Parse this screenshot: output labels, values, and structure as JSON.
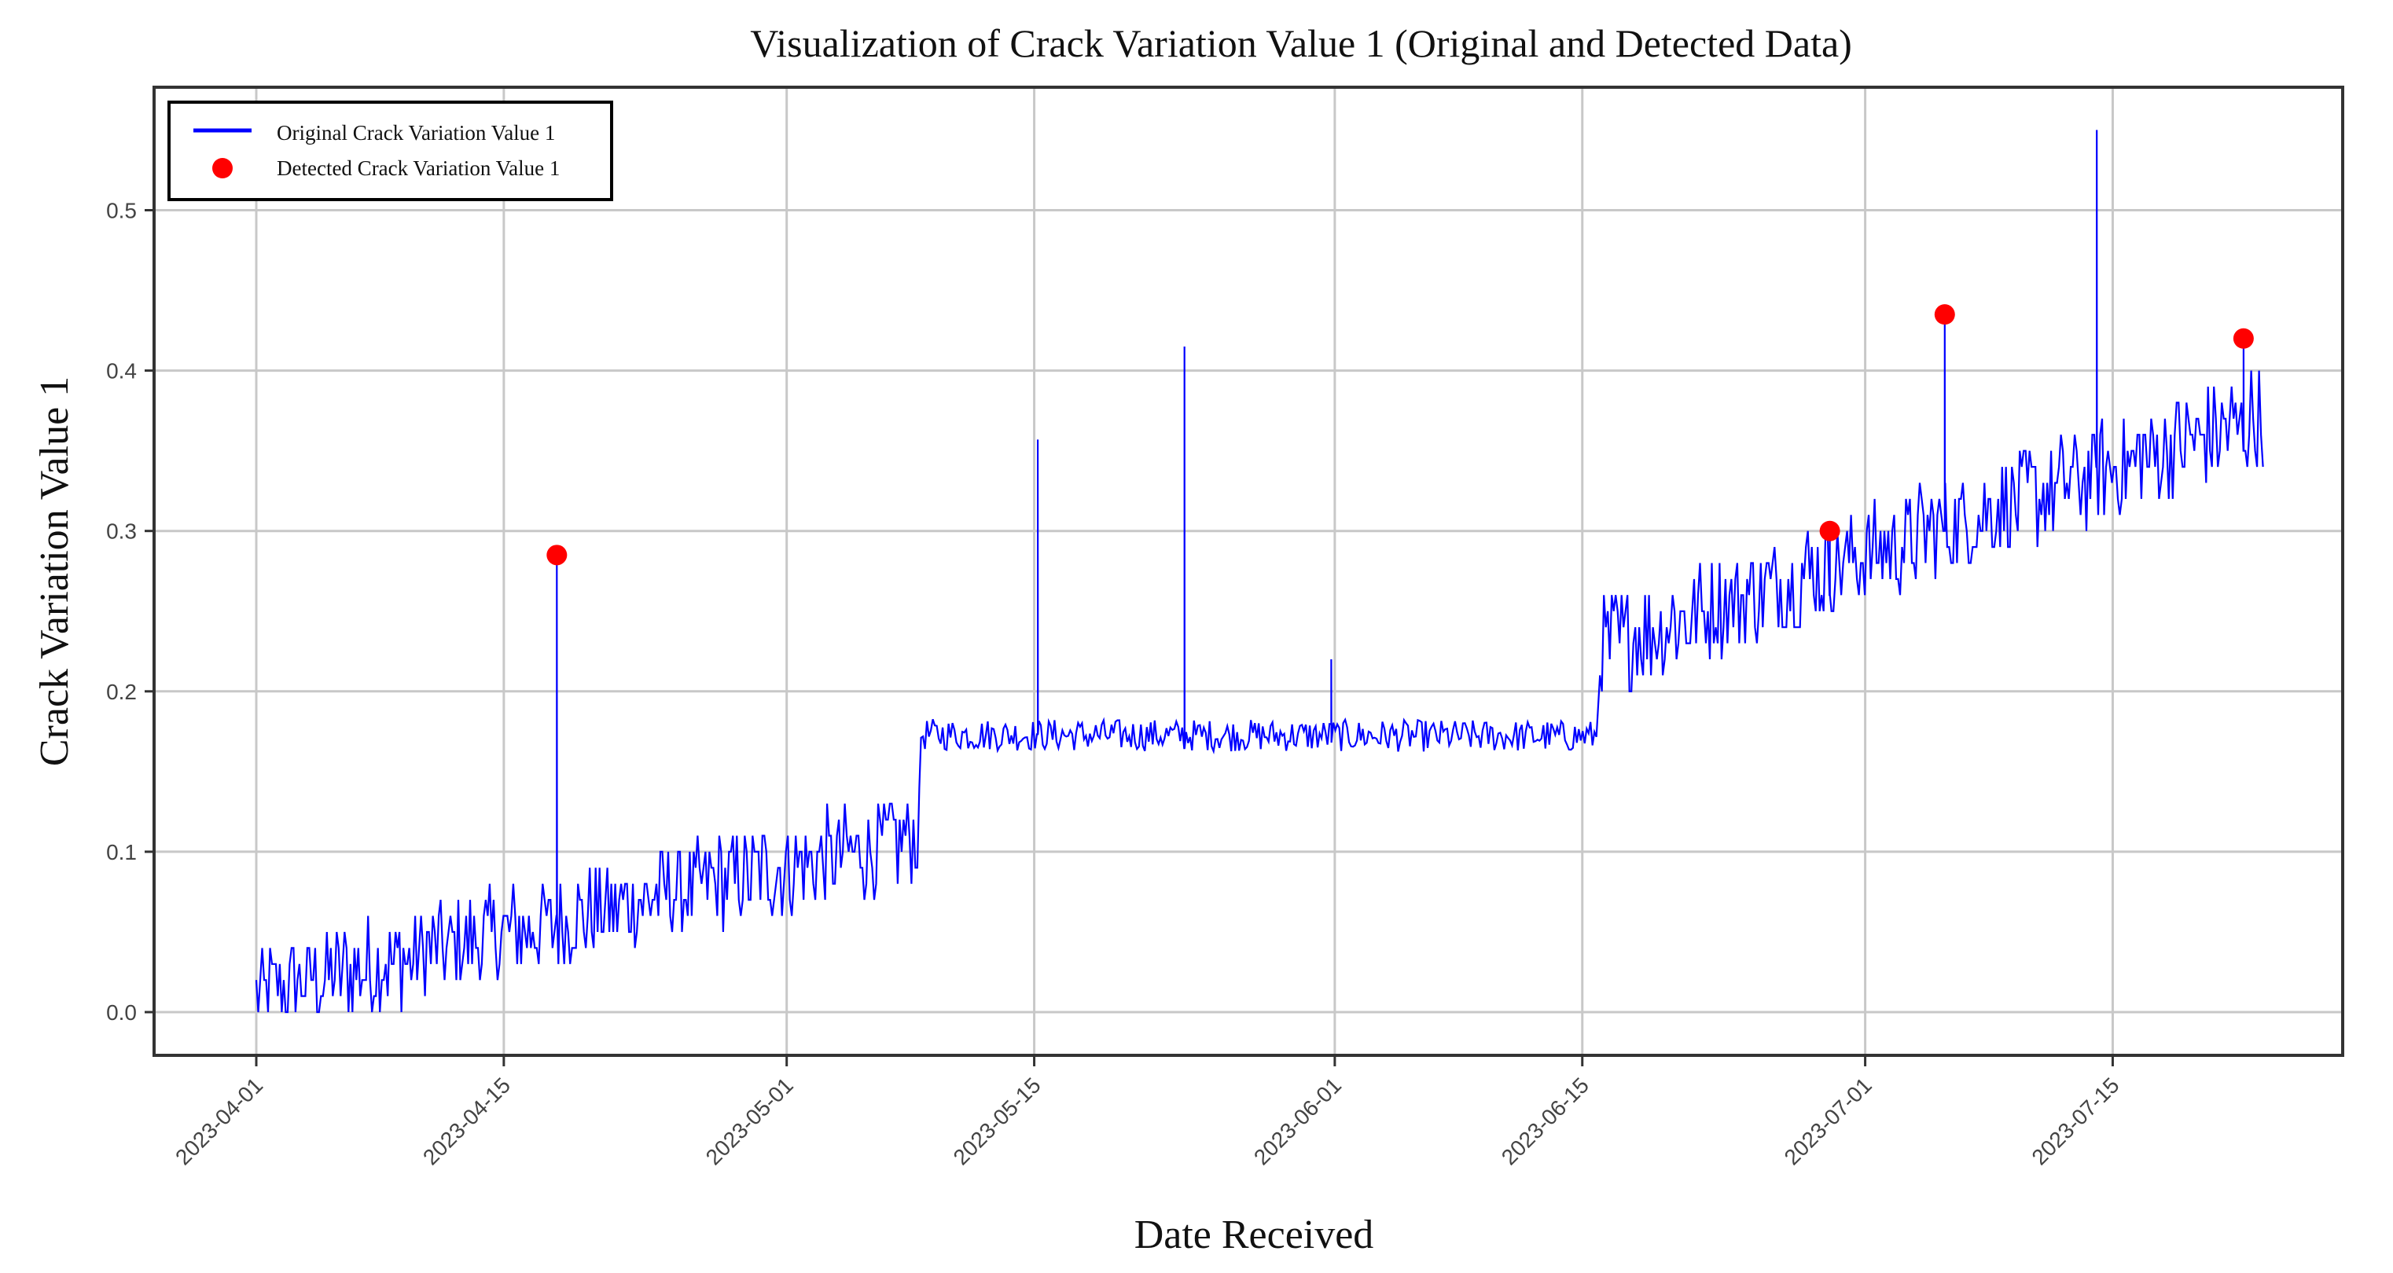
{
  "chart_data": {
    "type": "line",
    "title": "Visualization of Crack Variation Value 1 (Original and Detected Data)",
    "xlabel": "Date Received",
    "ylabel": "Crack Variation Value 1",
    "x_start": "2023-04-01",
    "xlim_days": [
      -7,
      121
    ],
    "ylim": [
      -0.028,
      0.575
    ],
    "grid": true,
    "legend_placement": "top-left",
    "legend": [
      "Original  Crack Variation Value 1",
      "Detected Crack Variation Value 1"
    ],
    "x_ticks": [
      {
        "label": "2023-04-01",
        "day": 0
      },
      {
        "label": "2023-04-15",
        "day": 14
      },
      {
        "label": "2023-05-01",
        "day": 30
      },
      {
        "label": "2023-05-15",
        "day": 44
      },
      {
        "label": "2023-06-01",
        "day": 61
      },
      {
        "label": "2023-06-15",
        "day": 75
      },
      {
        "label": "2023-07-01",
        "day": 91
      },
      {
        "label": "2023-07-15",
        "day": 105
      }
    ],
    "y_ticks": [
      {
        "label": "0.0",
        "value": 0.0
      },
      {
        "label": "0.1",
        "value": 0.1
      },
      {
        "label": "0.2",
        "value": 0.2
      },
      {
        "label": "0.3",
        "value": 0.3
      },
      {
        "label": "0.4",
        "value": 0.4
      },
      {
        "label": "0.5",
        "value": 0.5
      }
    ],
    "series": [
      {
        "name": "Original  Crack Variation Value 1",
        "color": "#0000ff",
        "segments": [
          {
            "from_day": 0,
            "to_day": 37.5,
            "start": 0.012,
            "end": 0.11,
            "noise": 0.03
          },
          {
            "from_day": 37.6,
            "to_day": 75.8,
            "start": 0.173,
            "end": 0.172,
            "noise": 0.01
          },
          {
            "from_day": 76,
            "to_day": 113.5,
            "start": 0.228,
            "end": 0.372,
            "noise": 0.032
          }
        ],
        "spikes": [
          {
            "day": 17.0,
            "value": 0.285
          },
          {
            "day": 44.2,
            "value": 0.357
          },
          {
            "day": 52.5,
            "value": 0.415
          },
          {
            "day": 60.8,
            "value": 0.22
          },
          {
            "day": 89.0,
            "value": 0.3
          },
          {
            "day": 95.5,
            "value": 0.435
          },
          {
            "day": 104.1,
            "value": 0.55
          },
          {
            "day": 112.4,
            "value": 0.42
          }
        ]
      },
      {
        "name": "Detected Crack Variation Value 1",
        "color": "#ff0000",
        "points": [
          {
            "date": "2023-04-18",
            "day": 17.0,
            "value": 0.285
          },
          {
            "date": "2023-06-29",
            "day": 89.0,
            "value": 0.3
          },
          {
            "date": "2023-07-05",
            "day": 95.5,
            "value": 0.435
          },
          {
            "date": "2023-07-22",
            "day": 112.4,
            "value": 0.42
          }
        ]
      }
    ]
  }
}
